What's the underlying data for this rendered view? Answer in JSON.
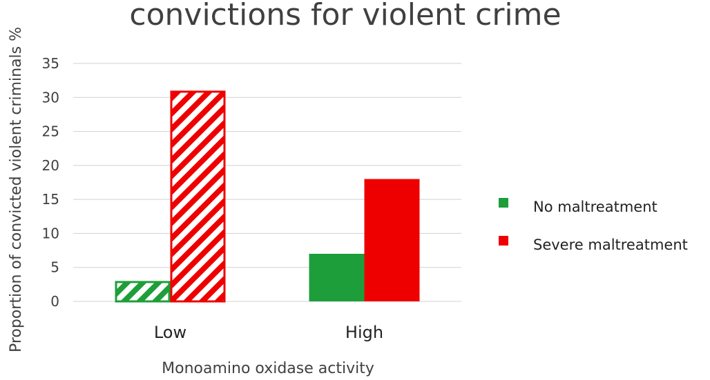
{
  "chart_data": {
    "type": "bar",
    "title": "convictions for violent crime",
    "xlabel": "Monoamino oxidase activity",
    "ylabel": "Proportion of convicted violent criminals %",
    "categories": [
      "Low",
      "High"
    ],
    "ylim": [
      0,
      35
    ],
    "yticks": [
      0,
      5,
      10,
      15,
      20,
      25,
      30,
      35
    ],
    "grid": true,
    "legend_position": "right",
    "series": [
      {
        "name": "No maltreatment",
        "color": "#1e9e3a",
        "values": [
          3,
          7
        ],
        "hatched": [
          true,
          false
        ]
      },
      {
        "name": "Severe maltreatment",
        "color": "#ee0000",
        "values": [
          31,
          18
        ],
        "hatched": [
          true,
          false
        ]
      }
    ]
  }
}
